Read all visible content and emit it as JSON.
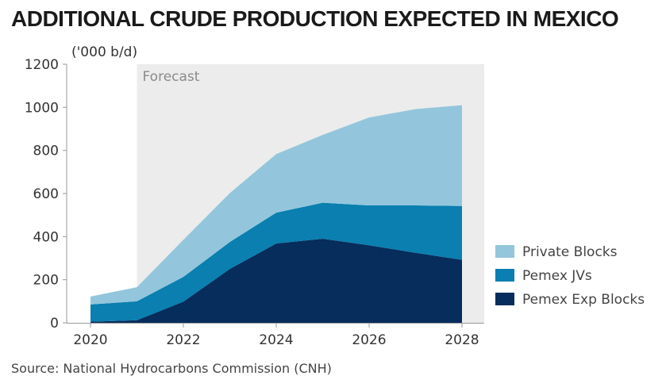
{
  "title": "ADDITIONAL CRUDE PRODUCTION EXPECTED IN MEXICO",
  "source": "Source: National Hydrocarbons Commission (CNH)",
  "chart_data": {
    "type": "area",
    "stacked": true,
    "unit_label": "('000 b/d)",
    "forecast_label": "Forecast",
    "forecast_start": 2021,
    "x": [
      2020,
      2021,
      2022,
      2023,
      2024,
      2025,
      2026,
      2027,
      2028
    ],
    "x_ticks": [
      2020,
      2022,
      2024,
      2026,
      2028
    ],
    "ylim": [
      0,
      1200
    ],
    "y_ticks": [
      0,
      200,
      400,
      600,
      800,
      1000,
      1200
    ],
    "series": [
      {
        "name": "Pemex Exp Blocks",
        "color": "#062d5c",
        "values": [
          5,
          12,
          98,
          250,
          368,
          390,
          360,
          325,
          292
        ]
      },
      {
        "name": "Pemex JVs",
        "color": "#0a7fb0",
        "values": [
          80,
          88,
          115,
          125,
          143,
          167,
          185,
          220,
          250
        ]
      },
      {
        "name": "Private Blocks",
        "color": "#93c6dc",
        "values": [
          37,
          65,
          172,
          227,
          272,
          315,
          408,
          447,
          468
        ]
      }
    ],
    "legend_order": [
      "Private Blocks",
      "Pemex JVs",
      "Pemex Exp Blocks"
    ],
    "legend_position": "right",
    "grid": false,
    "forecast_shading_color": "#ececec"
  }
}
